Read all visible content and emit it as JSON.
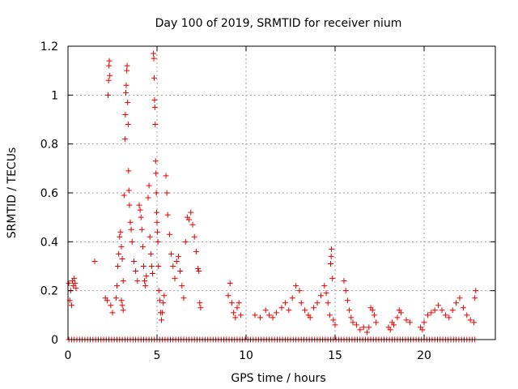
{
  "chart_data": {
    "type": "scatter",
    "title": "Day 100 of 2019, SRMTID for receiver nium",
    "xlabel": "GPS time / hours",
    "ylabel": "SRMTID / TECUs",
    "xlim": [
      0,
      24
    ],
    "ylim": [
      0,
      1.2
    ],
    "xticks": [
      0,
      5,
      10,
      15,
      20
    ],
    "yticks": [
      0,
      0.2,
      0.4,
      0.6,
      0.8,
      1,
      1.2
    ],
    "xtick_labels": [
      "0",
      "5",
      "10",
      "15",
      "20"
    ],
    "ytick_labels": [
      "0",
      "0.2",
      "0.4",
      "0.6",
      "0.8",
      "1",
      "1.2"
    ],
    "grid": true,
    "marker": "+",
    "color": "#e60000",
    "series": [
      {
        "name": "SRMTID",
        "points": [
          [
            0.05,
            0.23
          ],
          [
            0.1,
            0.16
          ],
          [
            0.15,
            0.2
          ],
          [
            0.2,
            0.14
          ],
          [
            0.25,
            0.24
          ],
          [
            0.3,
            0.22
          ],
          [
            0.35,
            0.25
          ],
          [
            0.4,
            0.23
          ],
          [
            0.45,
            0.21
          ],
          [
            1.5,
            0.32
          ],
          [
            2.1,
            0.17
          ],
          [
            2.2,
            0.16
          ],
          [
            2.25,
            1.0
          ],
          [
            2.28,
            1.06
          ],
          [
            2.3,
            1.12
          ],
          [
            2.32,
            1.14
          ],
          [
            2.35,
            1.08
          ],
          [
            2.4,
            0.14
          ],
          [
            2.5,
            0.11
          ],
          [
            2.7,
            0.17
          ],
          [
            2.75,
            0.22
          ],
          [
            2.8,
            0.3
          ],
          [
            2.85,
            0.35
          ],
          [
            2.9,
            0.42
          ],
          [
            2.95,
            0.44
          ],
          [
            3.0,
            0.38
          ],
          [
            3.05,
            0.33
          ],
          [
            3.1,
            0.24
          ],
          [
            3.0,
            0.16
          ],
          [
            3.05,
            0.14
          ],
          [
            3.1,
            0.12
          ],
          [
            3.15,
            0.59
          ],
          [
            3.2,
            0.82
          ],
          [
            3.22,
            0.92
          ],
          [
            3.25,
            1.01
          ],
          [
            3.27,
            1.04
          ],
          [
            3.3,
            1.1
          ],
          [
            3.32,
            1.12
          ],
          [
            3.35,
            0.97
          ],
          [
            3.38,
            0.88
          ],
          [
            3.4,
            0.69
          ],
          [
            3.42,
            0.61
          ],
          [
            3.45,
            0.55
          ],
          [
            3.5,
            0.48
          ],
          [
            3.55,
            0.45
          ],
          [
            3.6,
            0.4
          ],
          [
            3.7,
            0.32
          ],
          [
            3.8,
            0.28
          ],
          [
            3.9,
            0.24
          ],
          [
            4.0,
            0.55
          ],
          [
            4.05,
            0.53
          ],
          [
            4.1,
            0.5
          ],
          [
            4.15,
            0.45
          ],
          [
            4.2,
            0.38
          ],
          [
            4.25,
            0.3
          ],
          [
            4.3,
            0.24
          ],
          [
            4.35,
            0.22
          ],
          [
            4.4,
            0.26
          ],
          [
            4.5,
            0.58
          ],
          [
            4.55,
            0.63
          ],
          [
            4.6,
            0.42
          ],
          [
            4.65,
            0.35
          ],
          [
            4.7,
            0.3
          ],
          [
            4.75,
            0.27
          ],
          [
            4.8,
            1.17
          ],
          [
            4.82,
            1.15
          ],
          [
            4.84,
            1.07
          ],
          [
            4.86,
            0.98
          ],
          [
            4.88,
            0.95
          ],
          [
            4.9,
            0.88
          ],
          [
            4.92,
            0.73
          ],
          [
            4.94,
            0.68
          ],
          [
            4.96,
            0.6
          ],
          [
            4.98,
            0.52
          ],
          [
            5.0,
            0.48
          ],
          [
            5.02,
            0.44
          ],
          [
            5.05,
            0.4
          ],
          [
            5.08,
            0.3
          ],
          [
            5.1,
            0.2
          ],
          [
            5.15,
            0.16
          ],
          [
            5.2,
            0.11
          ],
          [
            5.25,
            0.08
          ],
          [
            5.3,
            0.11
          ],
          [
            5.35,
            0.15
          ],
          [
            5.4,
            0.18
          ],
          [
            5.5,
            0.67
          ],
          [
            5.55,
            0.6
          ],
          [
            5.6,
            0.51
          ],
          [
            5.7,
            0.43
          ],
          [
            5.8,
            0.35
          ],
          [
            5.9,
            0.3
          ],
          [
            6.0,
            0.25
          ],
          [
            6.1,
            0.32
          ],
          [
            6.2,
            0.34
          ],
          [
            6.3,
            0.28
          ],
          [
            6.4,
            0.22
          ],
          [
            6.5,
            0.17
          ],
          [
            6.6,
            0.4
          ],
          [
            6.7,
            0.5
          ],
          [
            6.8,
            0.49
          ],
          [
            6.9,
            0.52
          ],
          [
            7.0,
            0.47
          ],
          [
            7.1,
            0.42
          ],
          [
            7.2,
            0.36
          ],
          [
            7.3,
            0.29
          ],
          [
            7.35,
            0.28
          ],
          [
            7.4,
            0.15
          ],
          [
            7.45,
            0.13
          ],
          [
            9.0,
            0.18
          ],
          [
            9.1,
            0.23
          ],
          [
            9.2,
            0.15
          ],
          [
            9.3,
            0.11
          ],
          [
            9.4,
            0.09
          ],
          [
            9.5,
            0.13
          ],
          [
            9.6,
            0.15
          ],
          [
            9.7,
            0.1
          ],
          [
            10.5,
            0.1
          ],
          [
            10.8,
            0.09
          ],
          [
            11.1,
            0.12
          ],
          [
            11.3,
            0.1
          ],
          [
            11.5,
            0.09
          ],
          [
            11.7,
            0.11
          ],
          [
            12.0,
            0.13
          ],
          [
            12.2,
            0.15
          ],
          [
            12.4,
            0.12
          ],
          [
            12.6,
            0.17
          ],
          [
            12.8,
            0.22
          ],
          [
            13.0,
            0.2
          ],
          [
            13.1,
            0.15
          ],
          [
            13.3,
            0.12
          ],
          [
            13.5,
            0.1
          ],
          [
            13.6,
            0.09
          ],
          [
            13.8,
            0.13
          ],
          [
            14.0,
            0.15
          ],
          [
            14.2,
            0.18
          ],
          [
            14.4,
            0.22
          ],
          [
            14.5,
            0.19
          ],
          [
            14.6,
            0.15
          ],
          [
            14.7,
            0.1
          ],
          [
            14.75,
            0.31
          ],
          [
            14.78,
            0.34
          ],
          [
            14.8,
            0.37
          ],
          [
            14.85,
            0.25
          ],
          [
            14.9,
            0.08
          ],
          [
            15.0,
            0.06
          ],
          [
            15.5,
            0.24
          ],
          [
            15.6,
            0.2
          ],
          [
            15.7,
            0.16
          ],
          [
            15.8,
            0.12
          ],
          [
            15.9,
            0.09
          ],
          [
            16.0,
            0.07
          ],
          [
            16.2,
            0.06
          ],
          [
            16.4,
            0.04
          ],
          [
            16.6,
            0.05
          ],
          [
            16.8,
            0.03
          ],
          [
            16.9,
            0.05
          ],
          [
            17.0,
            0.13
          ],
          [
            17.1,
            0.12
          ],
          [
            17.2,
            0.1
          ],
          [
            17.3,
            0.07
          ],
          [
            18.0,
            0.05
          ],
          [
            18.1,
            0.04
          ],
          [
            18.2,
            0.07
          ],
          [
            18.3,
            0.06
          ],
          [
            18.5,
            0.09
          ],
          [
            18.6,
            0.12
          ],
          [
            18.7,
            0.11
          ],
          [
            19.0,
            0.08
          ],
          [
            19.2,
            0.07
          ],
          [
            19.8,
            0.05
          ],
          [
            19.9,
            0.04
          ],
          [
            20.0,
            0.07
          ],
          [
            20.2,
            0.1
          ],
          [
            20.4,
            0.11
          ],
          [
            20.6,
            0.12
          ],
          [
            20.8,
            0.14
          ],
          [
            21.0,
            0.12
          ],
          [
            21.2,
            0.1
          ],
          [
            21.4,
            0.09
          ],
          [
            21.6,
            0.12
          ],
          [
            21.8,
            0.15
          ],
          [
            22.0,
            0.17
          ],
          [
            22.2,
            0.13
          ],
          [
            22.4,
            0.1
          ],
          [
            22.6,
            0.08
          ],
          [
            22.8,
            0.07
          ],
          [
            22.85,
            0.17
          ],
          [
            22.9,
            0.2
          ]
        ],
        "zero_points_hours": [
          0.05,
          0.2,
          0.35,
          0.5,
          0.65,
          0.8,
          0.95,
          1.1,
          1.25,
          1.4,
          1.55,
          1.7,
          1.85,
          2.0,
          2.15,
          2.3,
          2.45,
          2.6,
          2.75,
          2.9,
          3.05,
          3.2,
          3.35,
          3.5,
          3.65,
          3.8,
          3.95,
          4.1,
          4.25,
          4.4,
          4.55,
          4.7,
          4.85,
          5.0,
          5.15,
          5.3,
          5.45,
          5.6,
          5.75,
          5.9,
          6.05,
          6.2,
          6.35,
          6.5,
          6.65,
          6.8,
          6.95,
          7.1,
          7.25,
          7.4,
          7.55,
          7.7,
          7.85,
          8.0,
          8.15,
          8.3,
          8.45,
          8.6,
          8.75,
          8.9,
          9.05,
          9.2,
          9.35,
          9.5,
          9.65,
          9.8,
          9.95,
          10.1,
          10.25,
          10.4,
          10.55,
          10.7,
          10.85,
          11.0,
          11.15,
          11.3,
          11.45,
          11.6,
          11.75,
          11.9,
          12.05,
          12.2,
          12.35,
          12.5,
          12.65,
          12.8,
          12.95,
          13.1,
          13.25,
          13.4,
          13.55,
          13.7,
          13.85,
          14.0,
          14.15,
          14.3,
          14.45,
          14.6,
          14.75,
          14.9,
          15.05,
          15.2,
          15.35,
          15.5,
          15.65,
          15.8,
          15.95,
          16.1,
          16.25,
          16.4,
          16.55,
          16.7,
          16.85,
          17.0,
          17.15,
          17.3,
          17.45,
          17.6,
          17.75,
          17.9,
          18.05,
          18.2,
          18.35,
          18.5,
          18.65,
          18.8,
          18.95,
          19.1,
          19.25,
          19.4,
          19.55,
          19.7,
          19.85,
          20.0,
          20.15,
          20.3,
          20.45,
          20.6,
          20.75,
          20.9,
          21.05,
          21.2,
          21.35,
          21.5,
          21.65,
          21.8,
          21.95,
          22.1,
          22.25,
          22.4,
          22.55,
          22.7,
          22.85
        ]
      }
    ]
  }
}
